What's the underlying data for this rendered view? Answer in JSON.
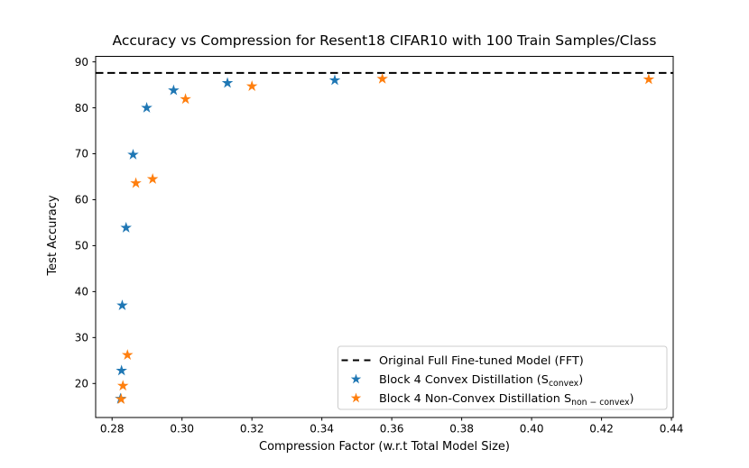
{
  "chart_data": {
    "type": "scatter",
    "title": "Accuracy vs Compression for Resent18 CIFAR10 with 100 Train Samples/Class",
    "xlabel": "Compression Factor (w.r.t Total Model Size)",
    "ylabel": "Test Accuracy",
    "xlim": [
      0.2753,
      0.4405
    ],
    "ylim": [
      12.6,
      91.2
    ],
    "xticks": [
      0.28,
      0.3,
      0.32,
      0.34,
      0.36,
      0.38,
      0.4,
      0.42,
      0.44
    ],
    "xtick_labels": [
      "0.28",
      "0.30",
      "0.32",
      "0.34",
      "0.36",
      "0.38",
      "0.40",
      "0.42",
      "0.44"
    ],
    "yticks": [
      20,
      30,
      40,
      50,
      60,
      70,
      80,
      90
    ],
    "ytick_labels": [
      "20",
      "30",
      "40",
      "50",
      "60",
      "70",
      "80",
      "90"
    ],
    "grid": false,
    "legend_position": "lower right",
    "hline": {
      "y": 87.6,
      "color": "#000000",
      "style": "dashed",
      "label": "Original Full Fine-tuned Model (FFT)"
    },
    "series": [
      {
        "name": "Block 4 Convex Distillation (S_convex)",
        "marker": "star",
        "color": "#1f77b4",
        "points": [
          [
            0.2824,
            16.7
          ],
          [
            0.2827,
            22.8
          ],
          [
            0.2829,
            37.0
          ],
          [
            0.284,
            53.9
          ],
          [
            0.286,
            69.8
          ],
          [
            0.2899,
            80.0
          ],
          [
            0.2976,
            83.8
          ],
          [
            0.313,
            85.4
          ],
          [
            0.3437,
            86.0
          ]
        ]
      },
      {
        "name": "Block 4 Non-Convex Distillation S_non-convex)",
        "marker": "star",
        "color": "#ff7f0e",
        "points": [
          [
            0.2826,
            16.6
          ],
          [
            0.2831,
            19.5
          ],
          [
            0.2844,
            26.2
          ],
          [
            0.2868,
            63.6
          ],
          [
            0.2916,
            64.5
          ],
          [
            0.301,
            81.9
          ],
          [
            0.32,
            84.7
          ],
          [
            0.3573,
            86.3
          ],
          [
            0.4335,
            86.2
          ]
        ]
      }
    ],
    "legend_entries": [
      {
        "marker": "dashed-line",
        "color": "#000000",
        "pre": "Original Full Fine-tuned Model (FFT)",
        "sub": "",
        "post": ""
      },
      {
        "marker": "star",
        "color": "#1f77b4",
        "pre": "Block 4 Convex Distillation (S",
        "sub": "convex",
        "post": ")"
      },
      {
        "marker": "star",
        "color": "#ff7f0e",
        "pre": "Block 4 Non-Convex Distillation S",
        "sub": "non − convex",
        "post": ")"
      }
    ]
  },
  "colors": {
    "convex_blue": "#1f77b4",
    "non_convex_orange": "#ff7f0e",
    "axis_black": "#000000",
    "legend_border_gray": "#cccccc"
  }
}
